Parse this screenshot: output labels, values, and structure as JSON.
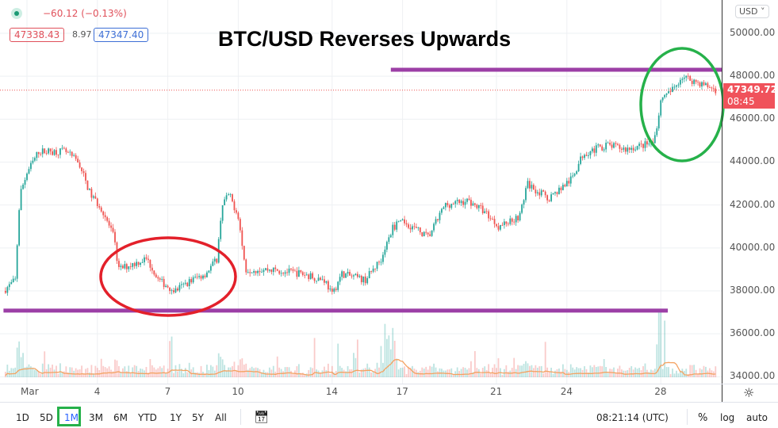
{
  "legend": {
    "change": "−60.12 (−0.13%)",
    "bid": "47338.43",
    "spread": "8.97",
    "ask": "47347.40"
  },
  "annotation_title": "BTC/USD Reverses Upwards",
  "currency_selector": "USD ˅",
  "current_price": {
    "value": "47349.72",
    "countdown": "08:45"
  },
  "colors": {
    "up": "#26a69a",
    "down": "#ef5350",
    "trendline": "#9c3fa6",
    "ellipse_low": "#e3202a",
    "ellipse_high": "#26b14a",
    "volume_ma": "#f4a261"
  },
  "toolbar": {
    "ranges": [
      "1D",
      "5D",
      "1M",
      "3M",
      "6M",
      "YTD",
      "1Y",
      "5Y",
      "All"
    ],
    "active_range": "1M",
    "clock": "08:21:14 (UTC)",
    "percent": "%",
    "log": "log",
    "auto": "auto",
    "icons": [
      "calendar-goto-icon",
      "settings-gear-icon"
    ]
  },
  "chart_data": {
    "type": "candlestick",
    "title": "BTC/USD Reverses Upwards",
    "x_unit": "day of March",
    "x_ticks": [
      "Mar",
      "4",
      "7",
      "10",
      "14",
      "17",
      "21",
      "24",
      "28"
    ],
    "x_tick_days": [
      1,
      4,
      7,
      10,
      14,
      17,
      21,
      24,
      28
    ],
    "y_ticks": [
      "50000.00",
      "48000.00",
      "46000.00",
      "44000.00",
      "42000.00",
      "40000.00",
      "38000.00",
      "36000.00",
      "34000.00"
    ],
    "ylim": [
      34000,
      50800
    ],
    "grid": true,
    "price_path": [
      [
        0.0,
        38000
      ],
      [
        0.5,
        38500
      ],
      [
        0.7,
        42500
      ],
      [
        1.0,
        43500
      ],
      [
        1.5,
        44500
      ],
      [
        2.6,
        44500
      ],
      [
        3.2,
        44000
      ],
      [
        3.7,
        42500
      ],
      [
        4.2,
        41800
      ],
      [
        4.7,
        40500
      ],
      [
        4.9,
        39000
      ],
      [
        6.1,
        39500
      ],
      [
        6.6,
        38500
      ],
      [
        7.3,
        38000
      ],
      [
        8.0,
        38500
      ],
      [
        8.6,
        38800
      ],
      [
        9.1,
        39500
      ],
      [
        9.3,
        42000
      ],
      [
        9.6,
        42500
      ],
      [
        10.0,
        41500
      ],
      [
        10.3,
        39000
      ],
      [
        11.3,
        39000
      ],
      [
        12.7,
        38800
      ],
      [
        13.7,
        38500
      ],
      [
        14.0,
        37800
      ],
      [
        14.4,
        38800
      ],
      [
        15.4,
        38500
      ],
      [
        16.1,
        39500
      ],
      [
        16.6,
        41000
      ],
      [
        17.1,
        41200
      ],
      [
        18.1,
        40500
      ],
      [
        18.8,
        42000
      ],
      [
        19.8,
        42200
      ],
      [
        20.5,
        41700
      ],
      [
        21.1,
        41000
      ],
      [
        22.0,
        41500
      ],
      [
        22.3,
        43000
      ],
      [
        23.2,
        42300
      ],
      [
        24.2,
        43200
      ],
      [
        24.7,
        44400
      ],
      [
        25.7,
        44800
      ],
      [
        26.5,
        44600
      ],
      [
        27.7,
        44900
      ],
      [
        28.0,
        46800
      ],
      [
        28.6,
        47500
      ],
      [
        28.9,
        48000
      ],
      [
        29.6,
        47700
      ],
      [
        30.4,
        47350
      ]
    ],
    "last_price": 47349.72,
    "resistance_line": {
      "price": 48300,
      "from_day": 16.5,
      "to_day": 30.6
    },
    "support_line": {
      "price": 37080,
      "from_day": 0.0,
      "to_day": 28.3
    },
    "volume": {
      "shown": true,
      "moving_average": true
    }
  }
}
